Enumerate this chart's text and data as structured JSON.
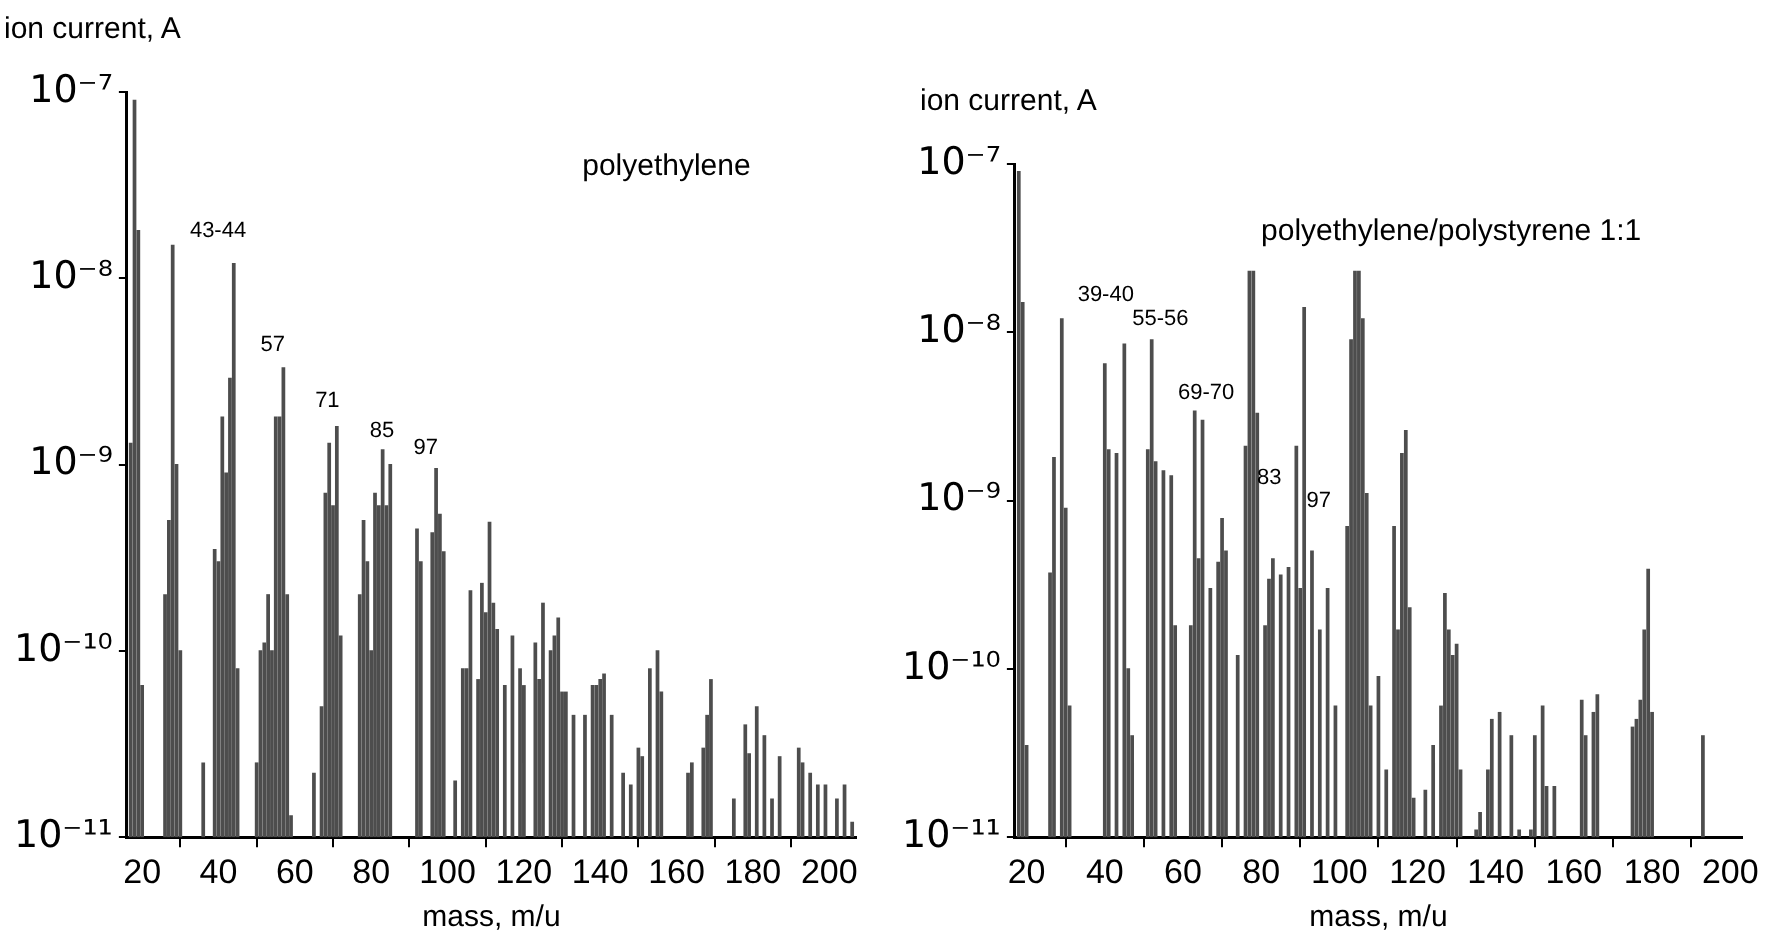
{
  "chart_data": [
    {
      "type": "bar",
      "title": "polyethylene",
      "xlabel": "mass, m/u",
      "ylabel": "ion current, A",
      "color": "#4d4d4d",
      "log": "y",
      "grid": false,
      "legend": false,
      "x": [
        17,
        18,
        19,
        20,
        26,
        27,
        28,
        29,
        30,
        36,
        39,
        40,
        41,
        42,
        43,
        44,
        45,
        50,
        51,
        52,
        53,
        54,
        55,
        56,
        57,
        58,
        59,
        65,
        67,
        68,
        69,
        70,
        71,
        72,
        77,
        78,
        79,
        80,
        81,
        82,
        83,
        84,
        85,
        92,
        93,
        96,
        97,
        98,
        99,
        102,
        104,
        105,
        106,
        108,
        109,
        110,
        111,
        112,
        113,
        115,
        117,
        119,
        120,
        123,
        124,
        125,
        127,
        128,
        129,
        130,
        131,
        133,
        136,
        138,
        139,
        140,
        141,
        143,
        146,
        148,
        150,
        151,
        153,
        155,
        156,
        163,
        164,
        167,
        168,
        169,
        175,
        178,
        179,
        181,
        183,
        185,
        187,
        192,
        193,
        195,
        197,
        199,
        202,
        204,
        206
      ],
      "values": [
        1.3e-09,
        9e-08,
        1.8e-08,
        6.5e-11,
        2e-10,
        5e-10,
        1.5e-08,
        1e-09,
        1e-10,
        2.5e-11,
        3.5e-10,
        3e-10,
        1.8e-09,
        9e-10,
        2.9e-09,
        1.2e-08,
        8e-11,
        2.5e-11,
        1e-10,
        1.1e-10,
        2e-10,
        1e-10,
        1.8e-09,
        1.8e-09,
        3.3e-09,
        2e-10,
        1.3e-11,
        2.2e-11,
        5e-11,
        7e-10,
        1.3e-09,
        6e-10,
        1.6e-09,
        1.2e-10,
        2e-10,
        5e-10,
        3e-10,
        1e-10,
        7e-10,
        6e-10,
        1.2e-09,
        6e-10,
        1e-09,
        4.5e-10,
        3e-10,
        4.3e-10,
        9.5e-10,
        5.4e-10,
        3.4e-10,
        2e-11,
        8e-11,
        8e-11,
        2.1e-10,
        7e-11,
        2.3e-10,
        1.6e-10,
        4.9e-10,
        1.8e-10,
        1.3e-10,
        6.5e-11,
        1.2e-10,
        8e-11,
        6.5e-11,
        1.1e-10,
        7e-11,
        1.8e-10,
        1e-10,
        1.2e-10,
        1.5e-10,
        6e-11,
        6e-11,
        4.5e-11,
        4.5e-11,
        6.5e-11,
        6.5e-11,
        7e-11,
        7.5e-11,
        4.5e-11,
        2.2e-11,
        1.9e-11,
        3e-11,
        2.7e-11,
        8e-11,
        1e-10,
        6e-11,
        2.2e-11,
        2.5e-11,
        3e-11,
        4.5e-11,
        7e-11,
        1.6e-11,
        4e-11,
        2.8e-11,
        5e-11,
        3.5e-11,
        1.6e-11,
        2.7e-11,
        3e-11,
        2.5e-11,
        2.2e-11,
        1.9e-11,
        1.9e-11,
        1.6e-11,
        1.9e-11,
        1.2e-11
      ],
      "xlim": [
        16,
        207
      ],
      "xticks": [
        20,
        40,
        60,
        80,
        100,
        120,
        140,
        160,
        180,
        200
      ],
      "ylim": [
        1e-11,
        1e-07
      ],
      "yticks": [
        {
          "value": 1e-11,
          "label": "10⁻¹¹"
        },
        {
          "value": 1e-10,
          "label": "10⁻¹⁰"
        },
        {
          "value": 1e-09,
          "label": "10⁻⁹"
        },
        {
          "value": 1e-08,
          "label": "10⁻⁸"
        },
        {
          "value": 1e-07,
          "label": "10⁻⁷"
        }
      ],
      "annotations": [
        "43-44",
        "57",
        "71",
        "85",
        "97"
      ]
    },
    {
      "type": "bar",
      "title": "polyethylene/polystyrene 1:1",
      "xlabel": "mass, m/u",
      "ylabel": "ion current, A",
      "color": "#4d4d4d",
      "log": "y",
      "grid": false,
      "legend": false,
      "x": [
        18,
        19,
        20,
        26,
        27,
        29,
        30,
        31,
        40,
        41,
        43,
        45,
        46,
        47,
        51,
        52,
        53,
        55,
        57,
        58,
        62,
        63,
        64,
        65,
        67,
        69,
        70,
        71,
        74,
        76,
        77,
        78,
        79,
        81,
        82,
        83,
        85,
        87,
        89,
        90,
        91,
        93,
        95,
        97,
        99,
        102,
        103,
        104,
        105,
        106,
        107,
        108,
        110,
        112,
        114,
        115,
        116,
        117,
        118,
        119,
        122,
        124,
        126,
        127,
        128,
        129,
        130,
        131,
        135,
        136,
        138,
        139,
        141,
        144,
        146,
        149,
        150,
        152,
        153,
        155,
        162,
        163,
        165,
        166,
        175,
        176,
        177,
        178,
        179,
        180,
        193
      ],
      "values": [
        9e-08,
        1.5e-08,
        3.5e-11,
        3.7e-10,
        1.8e-09,
        1.2e-08,
        9e-10,
        6e-11,
        6.5e-09,
        2e-09,
        1.9e-09,
        8.5e-09,
        1e-10,
        4e-11,
        2e-09,
        9e-09,
        1.7e-09,
        1.5e-09,
        1.4e-09,
        1.8e-10,
        1.8e-10,
        3.4e-09,
        4.5e-10,
        3e-09,
        3e-10,
        4.3e-10,
        7.8e-10,
        5e-10,
        1.2e-10,
        2.1e-09,
        2.3e-08,
        2.3e-08,
        3.3e-09,
        1.8e-10,
        3.4e-10,
        4.5e-10,
        3.6e-10,
        4e-10,
        2.1e-09,
        3e-10,
        1.4e-08,
        5e-10,
        1.7e-10,
        3e-10,
        6e-11,
        7e-10,
        9e-09,
        2.3e-08,
        2.3e-08,
        1.2e-08,
        1.1e-09,
        6e-11,
        9e-11,
        2.5e-11,
        7e-10,
        1.7e-10,
        1.9e-09,
        2.6e-09,
        2.3e-10,
        1.7e-11,
        1.9e-11,
        3.5e-11,
        6e-11,
        2.8e-10,
        1.7e-10,
        1.2e-10,
        1.4e-10,
        2.5e-11,
        1.1e-11,
        1.4e-11,
        2.5e-11,
        5e-11,
        5.5e-11,
        4e-11,
        1.1e-11,
        1.1e-11,
        4e-11,
        6e-11,
        2e-11,
        2e-11,
        6.5e-11,
        4e-11,
        5.5e-11,
        7e-11,
        4.5e-11,
        5e-11,
        6.5e-11,
        1.7e-10,
        3.9e-10,
        5.5e-11,
        4e-11
      ],
      "xlim": [
        17,
        203
      ],
      "xticks": [
        20,
        40,
        60,
        80,
        100,
        120,
        140,
        160,
        180,
        200
      ],
      "ylim": [
        1e-11,
        1e-07
      ],
      "yticks": [
        {
          "value": 1e-11,
          "label": "10⁻¹¹"
        },
        {
          "value": 1e-10,
          "label": "10⁻¹⁰"
        },
        {
          "value": 1e-09,
          "label": "10⁻⁹"
        },
        {
          "value": 1e-08,
          "label": "10⁻⁸"
        },
        {
          "value": 1e-07,
          "label": "10⁻⁷"
        }
      ],
      "annotations": [
        "39-40",
        "55-56",
        "69-70",
        "83",
        "97"
      ]
    }
  ]
}
